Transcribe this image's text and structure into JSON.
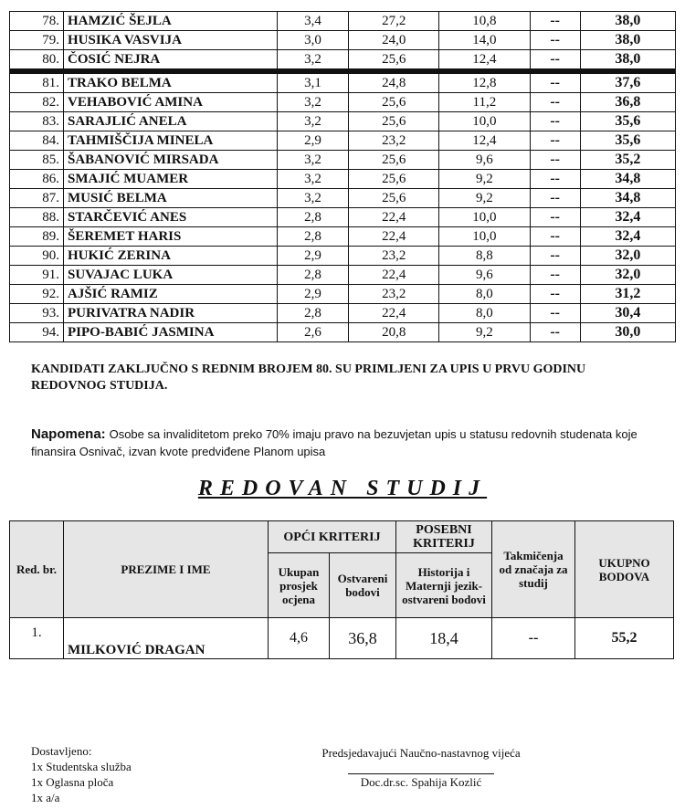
{
  "top_table": {
    "rows": [
      {
        "no": "78.",
        "name": "HAMZIĆ ŠEJLA",
        "avg": "3,4",
        "pts": "27,2",
        "special": "10,8",
        "comp": "--",
        "total": "38,0"
      },
      {
        "no": "79.",
        "name": "HUSIKA VASVIJA",
        "avg": "3,0",
        "pts": "24,0",
        "special": "14,0",
        "comp": "--",
        "total": "38,0"
      },
      {
        "no": "80.",
        "name": "ČOSIĆ NEJRA",
        "avg": "3,2",
        "pts": "25,6",
        "special": "12,4",
        "comp": "--",
        "total": "38,0"
      },
      {
        "no": "81.",
        "name": "TRAKO BELMA",
        "avg": "3,1",
        "pts": "24,8",
        "special": "12,8",
        "comp": "--",
        "total": "37,6"
      },
      {
        "no": "82.",
        "name": "VEHABOVIĆ AMINA",
        "avg": "3,2",
        "pts": "25,6",
        "special": "11,2",
        "comp": "--",
        "total": "36,8"
      },
      {
        "no": "83.",
        "name": "SARAJLIĆ ANELA",
        "avg": "3,2",
        "pts": "25,6",
        "special": "10,0",
        "comp": "--",
        "total": "35,6"
      },
      {
        "no": "84.",
        "name": "TAHMIŠČIJA MINELA",
        "avg": "2,9",
        "pts": "23,2",
        "special": "12,4",
        "comp": "--",
        "total": "35,6"
      },
      {
        "no": "85.",
        "name": "ŠABANOVIĆ MIRSADA",
        "avg": "3,2",
        "pts": "25,6",
        "special": "9,6",
        "comp": "--",
        "total": "35,2"
      },
      {
        "no": "86.",
        "name": "SMAJIĆ MUAMER",
        "avg": "3,2",
        "pts": "25,6",
        "special": "9,2",
        "comp": "--",
        "total": "34,8"
      },
      {
        "no": "87.",
        "name": "MUSIĆ BELMA",
        "avg": "3,2",
        "pts": "25,6",
        "special": "9,2",
        "comp": "--",
        "total": "34,8"
      },
      {
        "no": "88.",
        "name": "STARČEVIĆ ANES",
        "avg": "2,8",
        "pts": "22,4",
        "special": "10,0",
        "comp": "--",
        "total": "32,4"
      },
      {
        "no": "89.",
        "name": "ŠEREMET HARIS",
        "avg": "2,8",
        "pts": "22,4",
        "special": "10,0",
        "comp": "--",
        "total": "32,4"
      },
      {
        "no": "90.",
        "name": "HUKIĆ ZERINA",
        "avg": "2,9",
        "pts": "23,2",
        "special": "8,8",
        "comp": "--",
        "total": "32,0"
      },
      {
        "no": "91.",
        "name": "SUVAJAC LUKA",
        "avg": "2,8",
        "pts": "22,4",
        "special": "9,6",
        "comp": "--",
        "total": "32,0"
      },
      {
        "no": "92.",
        "name": "AJŠIĆ RAMIZ",
        "avg": "2,9",
        "pts": "23,2",
        "special": "8,0",
        "comp": "--",
        "total": "31,2"
      },
      {
        "no": "93.",
        "name": "PURIVATRA NADIR",
        "avg": "2,8",
        "pts": "22,4",
        "special": "8,0",
        "comp": "--",
        "total": "30,4"
      },
      {
        "no": "94.",
        "name": "PIPO-BABIĆ JASMINA",
        "avg": "2,6",
        "pts": "20,8",
        "special": "9,2",
        "comp": "--",
        "total": "30,0"
      }
    ]
  },
  "conclusion": "KANDIDATI ZAKLJUČNO S REDNIM BROJEM 80. SU PRIMLJENI ZA UPIS U PRVU GODINU REDOVNOG STUDIJA.",
  "note": {
    "label": "Napomena:",
    "text": "Osobe sa invaliditetom preko 70% imaju pravo na bezuvjetan upis u statusu redovnih studenata koje finansira Osnivač, izvan kvote predviđene Planom upisa"
  },
  "section_title": "REDOVAN STUDIJ",
  "bottom_table": {
    "headers": {
      "no": "Red. br.",
      "name": "PREZIME I IME",
      "general": "OPĆI KRITERIJ",
      "avg": "Ukupan prosjek ocjena",
      "pts": "Ostvareni bodovi",
      "special": "POSEBNI KRITERIJ",
      "special_sub": "Historija i Maternji jezik-ostvareni bodovi",
      "comp": "Takmičenja od značaja za studij",
      "total": "UKUPNO BODOVA"
    },
    "rows": [
      {
        "no": "1.",
        "name": "MILKOVIĆ DRAGAN",
        "avg": "4,6",
        "pts": "36,8",
        "special": "18,4",
        "comp": "--",
        "total": "55,2"
      }
    ]
  },
  "footer": {
    "delivered": [
      "Dostavljeno:",
      "1x Studentska služba",
      "1x Oglasna ploča",
      "1x a/a"
    ],
    "chair_title": "Predsjedavajući Naučno-nastavnog vijeća",
    "chair_name": "Doc.dr.sc. Spahija Kozlić"
  }
}
